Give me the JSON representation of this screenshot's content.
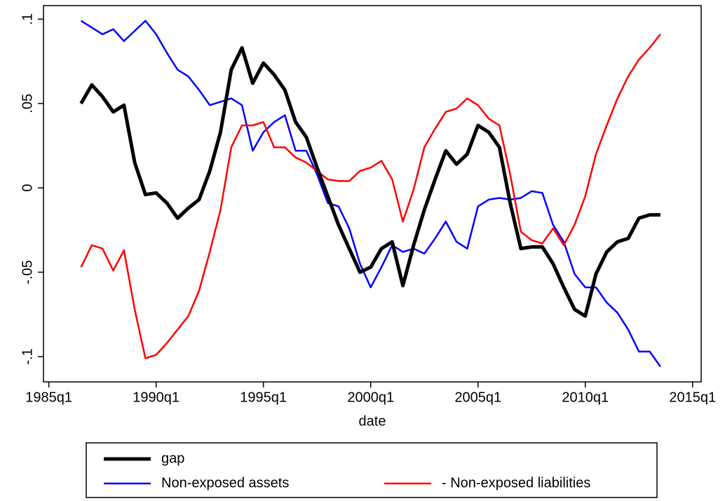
{
  "chart_data": {
    "type": "line",
    "x_label": "date",
    "x": [
      1986.5,
      1987.0,
      1987.5,
      1988.0,
      1988.5,
      1989.0,
      1989.5,
      1990.0,
      1990.5,
      1991.0,
      1991.5,
      1992.0,
      1992.5,
      1993.0,
      1993.5,
      1994.0,
      1994.5,
      1995.0,
      1995.5,
      1996.0,
      1996.5,
      1997.0,
      1997.5,
      1998.0,
      1998.5,
      1999.0,
      1999.5,
      2000.0,
      2000.5,
      2001.0,
      2001.5,
      2002.0,
      2002.5,
      2003.0,
      2003.5,
      2004.0,
      2004.5,
      2005.0,
      2005.5,
      2006.0,
      2006.5,
      2007.0,
      2007.5,
      2008.0,
      2008.5,
      2009.0,
      2009.5,
      2010.0,
      2010.5,
      2011.0,
      2011.5,
      2012.0,
      2012.5,
      2013.0,
      2013.5
    ],
    "series": [
      {
        "name": "gap",
        "color": "#000000",
        "width": 5,
        "values": [
          0.05,
          0.061,
          0.054,
          0.045,
          0.049,
          0.015,
          -0.004,
          -0.003,
          -0.009,
          -0.018,
          -0.012,
          -0.007,
          0.01,
          0.033,
          0.07,
          0.083,
          0.062,
          0.074,
          0.067,
          0.058,
          0.039,
          0.03,
          0.012,
          -0.005,
          -0.022,
          -0.036,
          -0.05,
          -0.047,
          -0.036,
          -0.032,
          -0.058,
          -0.034,
          -0.013,
          0.005,
          0.022,
          0.014,
          0.02,
          0.037,
          0.033,
          0.024,
          -0.009,
          -0.036,
          -0.035,
          -0.035,
          -0.045,
          -0.059,
          -0.072,
          -0.076,
          -0.051,
          -0.038,
          -0.032,
          -0.03,
          -0.018,
          -0.016,
          -0.016
        ]
      },
      {
        "name": "Non-exposed assets",
        "color": "#0000ff",
        "width": 2.5,
        "values": [
          0.099,
          0.095,
          0.091,
          0.094,
          0.087,
          0.093,
          0.099,
          0.091,
          0.08,
          0.07,
          0.066,
          0.058,
          0.049,
          0.051,
          0.053,
          0.049,
          0.022,
          0.033,
          0.039,
          0.043,
          0.022,
          0.022,
          0.008,
          -0.009,
          -0.011,
          -0.024,
          -0.045,
          -0.059,
          -0.047,
          -0.034,
          -0.038,
          -0.036,
          -0.039,
          -0.03,
          -0.02,
          -0.032,
          -0.036,
          -0.011,
          -0.007,
          -0.006,
          -0.007,
          -0.006,
          -0.002,
          -0.003,
          -0.022,
          -0.032,
          -0.051,
          -0.059,
          -0.059,
          -0.068,
          -0.074,
          -0.084,
          -0.097,
          -0.097,
          -0.106
        ]
      },
      {
        "name": "- Non-exposed liabilities",
        "color": "#ff0000",
        "width": 2.5,
        "values": [
          -0.047,
          -0.034,
          -0.036,
          -0.049,
          -0.037,
          -0.072,
          -0.101,
          -0.099,
          -0.092,
          -0.084,
          -0.076,
          -0.061,
          -0.038,
          -0.013,
          0.024,
          0.037,
          0.037,
          0.039,
          0.024,
          0.024,
          0.018,
          0.015,
          0.01,
          0.005,
          0.004,
          0.004,
          0.01,
          0.012,
          0.016,
          0.005,
          -0.02,
          -0.001,
          0.024,
          0.035,
          0.045,
          0.047,
          0.053,
          0.049,
          0.041,
          0.037,
          0.008,
          -0.026,
          -0.031,
          -0.033,
          -0.024,
          -0.034,
          -0.022,
          -0.005,
          0.02,
          0.037,
          0.053,
          0.066,
          0.076,
          0.083,
          0.091
        ]
      }
    ],
    "xlim": [
      1984.75,
      2015.4
    ],
    "xticks": [
      {
        "value": 1985,
        "label": "1985q1"
      },
      {
        "value": 1990,
        "label": "1990q1"
      },
      {
        "value": 1995,
        "label": "1995q1"
      },
      {
        "value": 2000,
        "label": "2000q1"
      },
      {
        "value": 2005,
        "label": "2005q1"
      },
      {
        "value": 2010,
        "label": "2010q1"
      },
      {
        "value": 2015,
        "label": "2015q1"
      }
    ],
    "ylim": [
      -0.115,
      0.108
    ],
    "yticks": [
      {
        "value": -0.1,
        "label": "-.1"
      },
      {
        "value": -0.05,
        "label": "-.05"
      },
      0,
      {
        "value": 0.05,
        "label": ".05"
      },
      {
        "value": 0.1,
        "label": ".1"
      }
    ],
    "grid": false,
    "legend": "bottom"
  }
}
